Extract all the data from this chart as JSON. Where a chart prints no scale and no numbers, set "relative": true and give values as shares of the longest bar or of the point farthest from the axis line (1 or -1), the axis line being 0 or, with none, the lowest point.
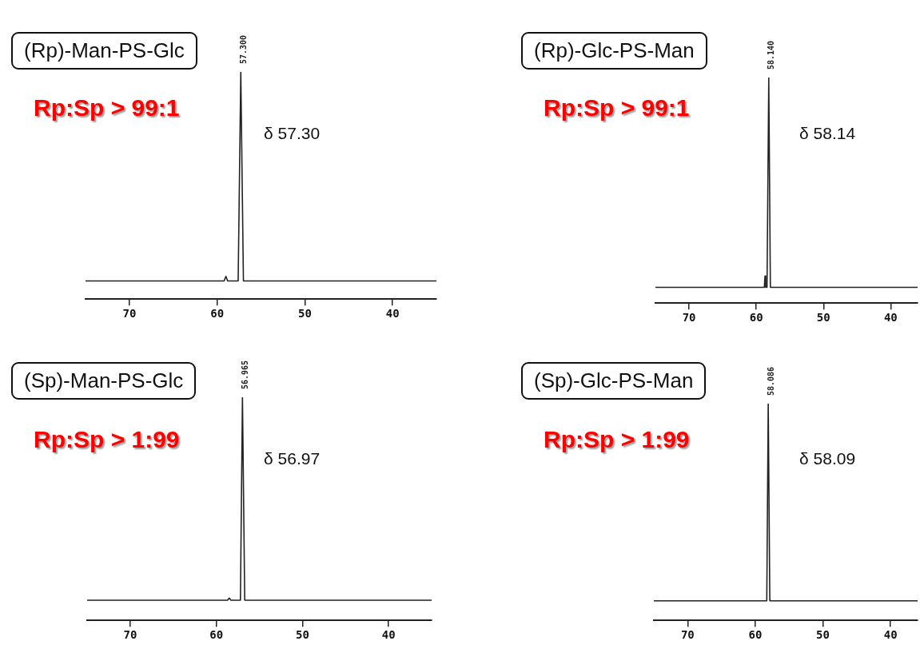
{
  "chart_data": [
    {
      "type": "line",
      "title": "(Rp)-Man-PS-Glc",
      "relative": true,
      "x": [
        75,
        59.2,
        59,
        58.8,
        57.6,
        57.3,
        57,
        35
      ],
      "series": [
        {
          "color": "#222222",
          "values": [
            0.08,
            0.08,
            0.1,
            0.08,
            0.08,
            1,
            0.08,
            0.08
          ]
        }
      ],
      "xlim": [
        75,
        35
      ],
      "xticks": [
        70,
        60,
        50,
        40
      ],
      "annotations": [
        {
          "text": "57.300",
          "x": 57.3,
          "y": 1
        },
        "Rp:Sp > 99:1",
        "δ 57.30"
      ]
    },
    {
      "type": "line",
      "title": "(Rp)-Glc-PS-Man",
      "relative": true,
      "x": [
        75,
        58.8,
        58.7,
        58.6,
        58.4,
        58.14,
        57.9,
        36
      ],
      "series": [
        {
          "color": "#222222",
          "values": [
            0.07,
            0.07,
            0.12,
            0.07,
            0.07,
            1,
            0.07,
            0.07
          ]
        }
      ],
      "xlim": [
        75,
        36
      ],
      "xticks": [
        70,
        60,
        50,
        40
      ],
      "annotations": [
        {
          "text": "58.140",
          "x": 58.14,
          "y": 1
        },
        "Rp:Sp > 99:1",
        "δ 58.14"
      ]
    },
    {
      "type": "line",
      "title": "(Sp)-Man-PS-Glc",
      "relative": true,
      "x": [
        75,
        58.7,
        58.5,
        58.3,
        57.2,
        56.965,
        56.7,
        35
      ],
      "series": [
        {
          "color": "#222222",
          "values": [
            0.09,
            0.09,
            0.1,
            0.09,
            0.09,
            1,
            0.09,
            0.09
          ]
        }
      ],
      "xlim": [
        75,
        35
      ],
      "xticks": [
        70,
        60,
        50,
        40
      ],
      "annotations": [
        {
          "text": "56.965",
          "x": 56.965,
          "y": 1
        },
        "Rp:Sp > 1:99",
        "δ 56.97"
      ]
    },
    {
      "type": "line",
      "title": "(Sp)-Glc-PS-Man",
      "relative": true,
      "x": [
        75,
        58.3,
        58.086,
        57.85,
        36
      ],
      "series": [
        {
          "color": "#222222",
          "values": [
            0.09,
            0.09,
            1,
            0.09,
            0.09
          ]
        }
      ],
      "xlim": [
        75,
        36
      ],
      "xticks": [
        70,
        60,
        50,
        40
      ],
      "annotations": [
        {
          "text": "58.086",
          "x": 58.086,
          "y": 1
        },
        "Rp:Sp > 1:99",
        "δ 58.09"
      ]
    }
  ]
}
